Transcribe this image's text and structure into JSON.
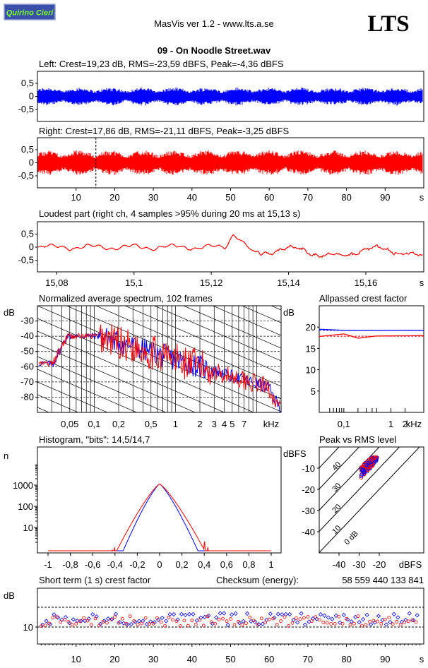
{
  "header": {
    "badge_label": "Quirino Cieri",
    "app_title": "MasVis ver 1.2 - www.lts.a.se",
    "brand": "LTS",
    "file_title": "09 - On Noodle Street.wav"
  },
  "colors": {
    "left": "#0000ff",
    "right": "#ff0000",
    "badge_bg": "#3a4fa8",
    "badge_text": "#7dff2f"
  },
  "waveforms": {
    "left": {
      "title": "Left: Crest=19,23 dB, RMS=-23,59 dBFS, Peak=-4,36 dBFS",
      "color": "left",
      "amplitude": 0.36,
      "y_ticks": [
        "0,5",
        "0",
        "-0,5"
      ]
    },
    "right": {
      "title": "Right: Crest=17,86 dB, RMS=-21,11 dBFS, Peak=-3,25 dBFS",
      "color": "right",
      "amplitude": 0.5,
      "y_ticks": [
        "0,5",
        "0",
        "-0,5"
      ],
      "marker_x": 15.13
    },
    "time_axis": {
      "x_range": [
        0,
        100
      ],
      "ticks": [
        10,
        20,
        30,
        40,
        50,
        60,
        70,
        80,
        90
      ],
      "tick_labels": [
        "10",
        "20",
        "30",
        "40",
        "50",
        "60",
        "70",
        "80",
        "90"
      ],
      "unit": "s"
    }
  },
  "loudest": {
    "title": "Loudest part (right ch, 4 samples >95% during 20 ms at 15,13 s)",
    "y_ticks": [
      "0,5",
      "0",
      "-0,5"
    ],
    "x_range": [
      15.075,
      15.175
    ],
    "x_ticks": [
      15.08,
      15.1,
      15.12,
      15.14,
      15.16
    ],
    "x_tick_labels": [
      "15,08",
      "15,1",
      "15,12",
      "15,14",
      "15,16"
    ],
    "unit": "s"
  },
  "spectrum": {
    "title": "Normalized average spectrum, 102 frames",
    "ylabel": "dB",
    "y_ticks": [
      -30,
      -40,
      -50,
      -60,
      -70,
      -80
    ],
    "y_tick_labels": [
      "-30",
      "-40",
      "-50",
      "-60",
      "-70",
      "-80"
    ],
    "y_range": [
      -90,
      -20
    ],
    "x_range_khz": [
      0.02,
      20
    ],
    "x_tick_labels": [
      "0,05",
      "0,1",
      "0,2",
      "0,5",
      "1",
      "2",
      "3",
      "4",
      "5",
      "7"
    ],
    "x_ticks": [
      0.05,
      0.1,
      0.2,
      0.5,
      1,
      2,
      3,
      4,
      5,
      7
    ],
    "unit": "kHz"
  },
  "allpass": {
    "title": "Allpassed crest factor",
    "ylabel": "dB",
    "y_ticks": [
      20,
      15,
      10,
      5
    ],
    "y_tick_labels": [
      "20",
      "15",
      "10",
      "5"
    ],
    "y_range": [
      0,
      25
    ],
    "x_ticks": [
      0.1,
      1,
      2
    ],
    "x_tick_labels": [
      "0,1",
      "1",
      "2"
    ],
    "unit": "kHz",
    "left_ref": 19.23,
    "right_ref": 17.86
  },
  "histogram": {
    "title": "Histogram, \"bits\": 14,5/14,7",
    "ylabel": "n",
    "y_tick_labels": [
      "1000",
      "100",
      "10"
    ],
    "x_ticks": [
      -1,
      -0.8,
      -0.6,
      -0.4,
      -0.2,
      0,
      0.2,
      0.4,
      0.6,
      0.8,
      1
    ],
    "x_tick_labels": [
      "-1",
      "-0,8",
      "-0,6",
      "-0,4",
      "-0,2",
      "0",
      "0,2",
      "0,4",
      "0,6",
      "0,8",
      "1"
    ]
  },
  "peak_rms": {
    "title": "Peak vs RMS level",
    "ylabel": "dBFS",
    "y_ticks": [
      -10,
      -20,
      -30,
      -40
    ],
    "y_tick_labels": [
      "-10",
      "-20",
      "-30",
      "-40"
    ],
    "x_ticks": [
      -40,
      -30,
      -20
    ],
    "x_tick_labels": [
      "-40",
      "-30",
      "-20"
    ],
    "x_unit": "dBFS",
    "diag_labels": [
      "40",
      "30",
      "20",
      "10",
      "0 dB"
    ]
  },
  "crest_short": {
    "title": "Short term (1 s) crest factor",
    "checksum_label": "Checksum (energy):",
    "checksum_value": "58 559 440 133 841",
    "ylabel": "dB",
    "y_tick_label": "10",
    "x_ticks": [
      10,
      20,
      30,
      40,
      50,
      60,
      70,
      80,
      90
    ],
    "x_tick_labels": [
      "10",
      "20",
      "30",
      "40",
      "50",
      "60",
      "70",
      "80",
      "90"
    ],
    "unit": "s"
  }
}
